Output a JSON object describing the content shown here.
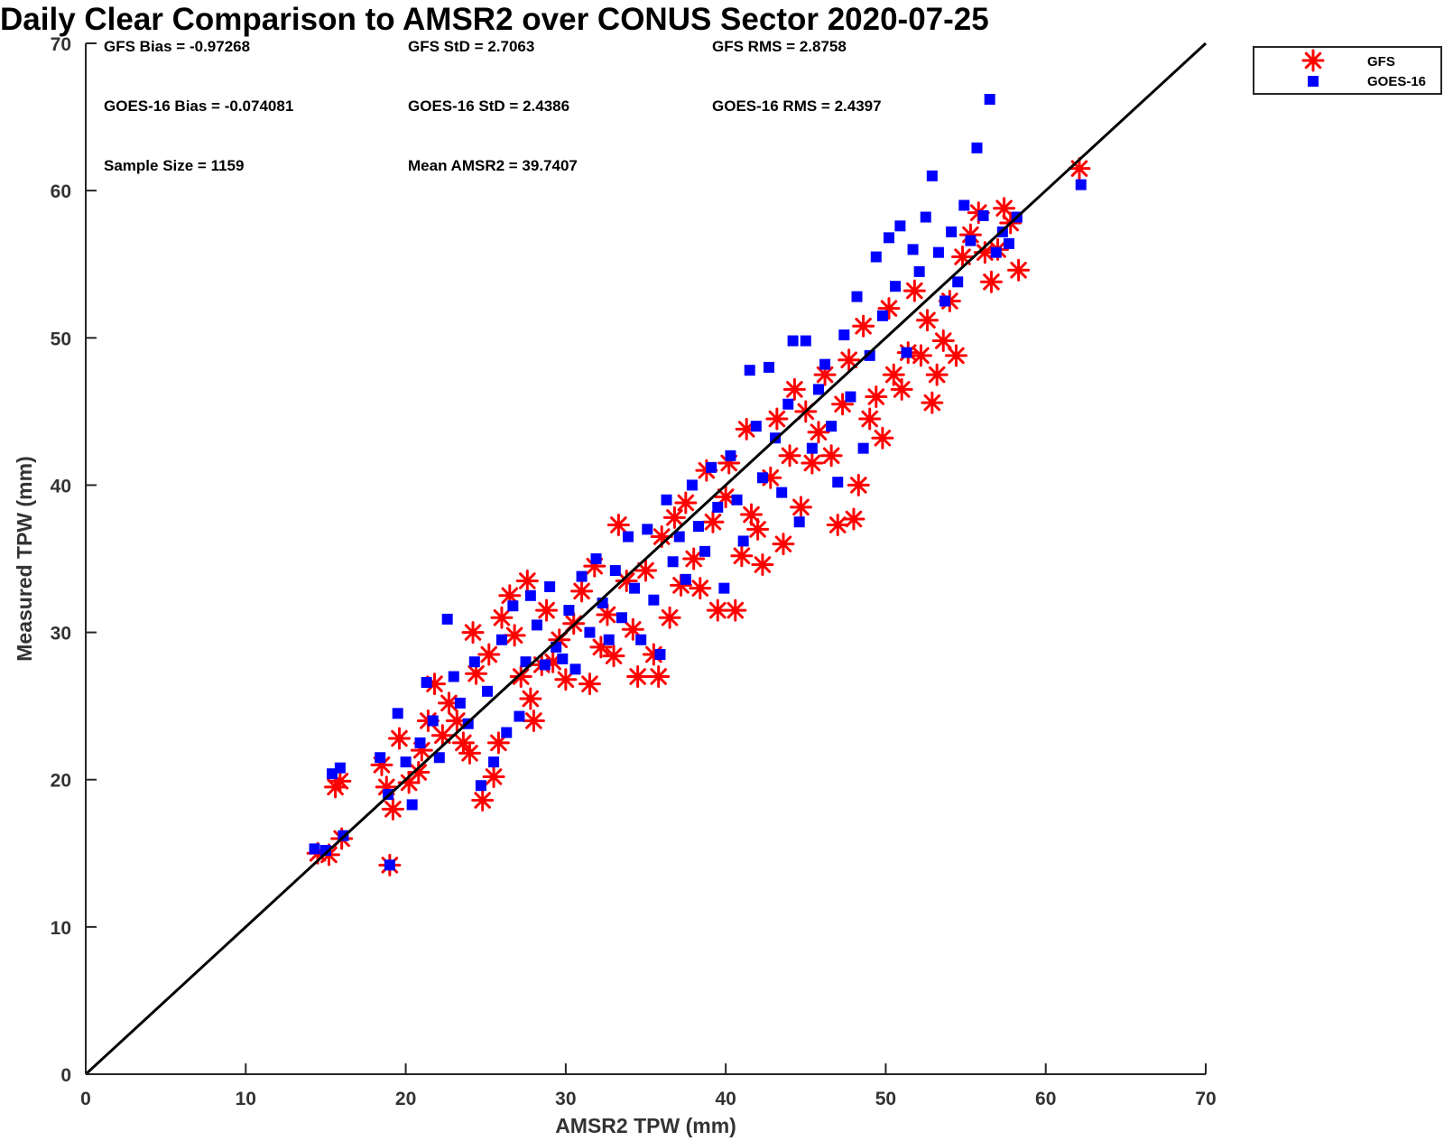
{
  "chart_data": {
    "type": "scatter",
    "title": "Daily Clear Comparison to AMSR2 over CONUS Sector 2020-07-25",
    "xlabel": "AMSR2 TPW (mm)",
    "ylabel": "Measured TPW (mm)",
    "xlim": [
      0,
      70
    ],
    "ylim": [
      0,
      70
    ],
    "xticks": [
      0,
      10,
      20,
      30,
      40,
      50,
      60,
      70
    ],
    "yticks": [
      0,
      10,
      20,
      30,
      40,
      50,
      60,
      70
    ],
    "grid": false,
    "legend_position": "outside-top-right",
    "reference_line": {
      "x": [
        0,
        70
      ],
      "y": [
        0,
        70
      ],
      "color": "#000000"
    },
    "stats": [
      {
        "label": "GFS Bias",
        "value": "-0.97268"
      },
      {
        "label": "GFS StD",
        "value": "2.7063"
      },
      {
        "label": "GFS RMS",
        "value": "2.8758"
      },
      {
        "label": "GOES-16 Bias",
        "value": "-0.074081"
      },
      {
        "label": "GOES-16 StD",
        "value": "2.4386"
      },
      {
        "label": "GOES-16 RMS",
        "value": "2.4397"
      },
      {
        "label": "Sample Size",
        "value": "1159"
      },
      {
        "label": "Mean AMSR2",
        "value": "39.7407"
      }
    ],
    "series": [
      {
        "name": "GFS",
        "marker": "asterisk",
        "color": "#ff0000",
        "points": [
          [
            14.5,
            15.0
          ],
          [
            15.2,
            14.9
          ],
          [
            15.6,
            19.5
          ],
          [
            15.9,
            19.9
          ],
          [
            16.0,
            16.0
          ],
          [
            18.5,
            21.0
          ],
          [
            18.8,
            19.5
          ],
          [
            19.2,
            18.0
          ],
          [
            19.0,
            14.2
          ],
          [
            19.6,
            22.8
          ],
          [
            20.2,
            19.8
          ],
          [
            20.8,
            20.5
          ],
          [
            21.0,
            22.0
          ],
          [
            21.4,
            24.0
          ],
          [
            21.8,
            26.5
          ],
          [
            22.3,
            23.0
          ],
          [
            22.7,
            25.2
          ],
          [
            23.2,
            24.0
          ],
          [
            23.6,
            22.5
          ],
          [
            24.0,
            21.8
          ],
          [
            24.4,
            27.2
          ],
          [
            24.8,
            18.6
          ],
          [
            24.2,
            30.0
          ],
          [
            25.2,
            28.5
          ],
          [
            25.5,
            20.2
          ],
          [
            25.8,
            22.5
          ],
          [
            26.0,
            31.0
          ],
          [
            26.5,
            32.5
          ],
          [
            26.8,
            29.8
          ],
          [
            27.2,
            27.0
          ],
          [
            27.6,
            33.5
          ],
          [
            27.8,
            25.5
          ],
          [
            28.0,
            24.0
          ],
          [
            28.5,
            27.8
          ],
          [
            28.8,
            31.5
          ],
          [
            29.2,
            28.0
          ],
          [
            29.6,
            29.5
          ],
          [
            30.0,
            26.8
          ],
          [
            30.5,
            30.6
          ],
          [
            31.0,
            32.8
          ],
          [
            31.5,
            26.5
          ],
          [
            31.8,
            34.5
          ],
          [
            32.2,
            29.0
          ],
          [
            32.6,
            31.2
          ],
          [
            33.0,
            28.4
          ],
          [
            33.3,
            37.3
          ],
          [
            33.8,
            33.5
          ],
          [
            34.2,
            30.2
          ],
          [
            34.5,
            27.0
          ],
          [
            35.0,
            34.2
          ],
          [
            35.5,
            28.5
          ],
          [
            35.8,
            27.0
          ],
          [
            36.0,
            36.5
          ],
          [
            36.5,
            31.0
          ],
          [
            36.8,
            37.8
          ],
          [
            37.2,
            33.2
          ],
          [
            37.5,
            38.8
          ],
          [
            38.0,
            35.0
          ],
          [
            38.4,
            33.0
          ],
          [
            38.8,
            41.0
          ],
          [
            39.2,
            37.5
          ],
          [
            39.5,
            31.5
          ],
          [
            40.0,
            39.2
          ],
          [
            40.2,
            41.5
          ],
          [
            40.6,
            31.5
          ],
          [
            41.0,
            35.2
          ],
          [
            41.3,
            43.8
          ],
          [
            41.6,
            38.0
          ],
          [
            42.0,
            37.0
          ],
          [
            42.3,
            34.6
          ],
          [
            42.8,
            40.5
          ],
          [
            43.2,
            44.5
          ],
          [
            43.6,
            36.0
          ],
          [
            44.0,
            42.0
          ],
          [
            44.3,
            46.5
          ],
          [
            44.7,
            38.5
          ],
          [
            45.0,
            45.0
          ],
          [
            45.4,
            41.5
          ],
          [
            45.8,
            43.6
          ],
          [
            46.2,
            47.5
          ],
          [
            46.6,
            42.0
          ],
          [
            47.0,
            37.3
          ],
          [
            47.3,
            45.5
          ],
          [
            47.7,
            48.5
          ],
          [
            48.0,
            37.7
          ],
          [
            48.3,
            40.0
          ],
          [
            48.6,
            50.8
          ],
          [
            49.0,
            44.5
          ],
          [
            49.4,
            46.0
          ],
          [
            49.8,
            43.2
          ],
          [
            50.2,
            52.0
          ],
          [
            50.5,
            47.5
          ],
          [
            51.0,
            46.5
          ],
          [
            51.4,
            49.0
          ],
          [
            51.8,
            53.2
          ],
          [
            52.2,
            48.8
          ],
          [
            52.6,
            51.2
          ],
          [
            52.9,
            45.6
          ],
          [
            53.2,
            47.5
          ],
          [
            53.6,
            49.8
          ],
          [
            54.0,
            52.5
          ],
          [
            54.4,
            48.8
          ],
          [
            54.8,
            55.5
          ],
          [
            55.3,
            57.0
          ],
          [
            55.8,
            58.5
          ],
          [
            56.2,
            55.8
          ],
          [
            56.6,
            53.8
          ],
          [
            57.0,
            56.0
          ],
          [
            57.4,
            58.8
          ],
          [
            57.8,
            57.8
          ],
          [
            58.3,
            54.6
          ],
          [
            62.1,
            61.5
          ]
        ]
      },
      {
        "name": "GOES-16",
        "marker": "square",
        "color": "#0000ff",
        "points": [
          [
            14.3,
            15.3
          ],
          [
            15.0,
            15.2
          ],
          [
            15.4,
            20.4
          ],
          [
            15.9,
            20.8
          ],
          [
            16.1,
            16.2
          ],
          [
            18.4,
            21.5
          ],
          [
            18.9,
            19.0
          ],
          [
            19.0,
            14.2
          ],
          [
            19.5,
            24.5
          ],
          [
            20.0,
            21.2
          ],
          [
            20.4,
            18.3
          ],
          [
            20.9,
            22.5
          ],
          [
            21.3,
            26.6
          ],
          [
            21.7,
            24.0
          ],
          [
            22.1,
            21.5
          ],
          [
            22.6,
            30.9
          ],
          [
            23.0,
            27.0
          ],
          [
            23.4,
            25.2
          ],
          [
            23.9,
            23.8
          ],
          [
            24.3,
            28.0
          ],
          [
            24.7,
            19.6
          ],
          [
            25.1,
            26.0
          ],
          [
            25.5,
            21.2
          ],
          [
            26.0,
            29.5
          ],
          [
            26.3,
            23.2
          ],
          [
            26.7,
            31.8
          ],
          [
            27.1,
            24.3
          ],
          [
            27.5,
            28.0
          ],
          [
            27.8,
            32.5
          ],
          [
            28.2,
            30.5
          ],
          [
            28.7,
            27.8
          ],
          [
            29.0,
            33.1
          ],
          [
            29.4,
            29.0
          ],
          [
            29.8,
            28.2
          ],
          [
            30.2,
            31.5
          ],
          [
            30.6,
            27.5
          ],
          [
            31.0,
            33.8
          ],
          [
            31.5,
            30.0
          ],
          [
            31.9,
            35.0
          ],
          [
            32.3,
            32.0
          ],
          [
            32.7,
            29.5
          ],
          [
            33.1,
            34.2
          ],
          [
            33.5,
            31.0
          ],
          [
            33.9,
            36.5
          ],
          [
            34.3,
            33.0
          ],
          [
            34.7,
            29.5
          ],
          [
            35.1,
            37.0
          ],
          [
            35.5,
            32.2
          ],
          [
            35.9,
            28.5
          ],
          [
            36.3,
            39.0
          ],
          [
            36.7,
            34.8
          ],
          [
            37.1,
            36.5
          ],
          [
            37.5,
            33.6
          ],
          [
            37.9,
            40.0
          ],
          [
            38.3,
            37.2
          ],
          [
            38.7,
            35.5
          ],
          [
            39.1,
            41.2
          ],
          [
            39.5,
            38.5
          ],
          [
            39.9,
            33.0
          ],
          [
            40.3,
            42.0
          ],
          [
            40.7,
            39.0
          ],
          [
            41.1,
            36.2
          ],
          [
            41.5,
            47.8
          ],
          [
            41.9,
            44.0
          ],
          [
            42.3,
            40.5
          ],
          [
            42.7,
            48.0
          ],
          [
            43.1,
            43.2
          ],
          [
            43.5,
            39.5
          ],
          [
            43.9,
            45.5
          ],
          [
            44.2,
            49.8
          ],
          [
            44.6,
            37.5
          ],
          [
            45.0,
            49.8
          ],
          [
            45.4,
            42.5
          ],
          [
            45.8,
            46.5
          ],
          [
            46.2,
            48.2
          ],
          [
            46.6,
            44.0
          ],
          [
            47.0,
            40.2
          ],
          [
            47.4,
            50.2
          ],
          [
            47.8,
            46.0
          ],
          [
            48.2,
            52.8
          ],
          [
            48.6,
            42.5
          ],
          [
            49.0,
            48.8
          ],
          [
            49.4,
            55.5
          ],
          [
            49.8,
            51.5
          ],
          [
            50.2,
            56.8
          ],
          [
            50.6,
            53.5
          ],
          [
            50.9,
            57.6
          ],
          [
            51.3,
            49.0
          ],
          [
            51.7,
            56.0
          ],
          [
            52.1,
            54.5
          ],
          [
            52.5,
            58.2
          ],
          [
            52.9,
            61.0
          ],
          [
            53.3,
            55.8
          ],
          [
            53.7,
            52.5
          ],
          [
            54.1,
            57.2
          ],
          [
            54.5,
            53.8
          ],
          [
            54.9,
            59.0
          ],
          [
            55.3,
            56.6
          ],
          [
            55.7,
            62.9
          ],
          [
            56.1,
            58.3
          ],
          [
            56.5,
            66.2
          ],
          [
            56.9,
            55.8
          ],
          [
            57.3,
            57.2
          ],
          [
            57.7,
            56.4
          ],
          [
            58.2,
            58.2
          ],
          [
            62.2,
            60.4
          ]
        ]
      }
    ]
  }
}
